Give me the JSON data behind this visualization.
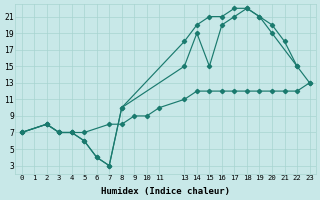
{
  "xlabel": "Humidex (Indice chaleur)",
  "bg_color": "#c8e8e8",
  "line_color": "#1a7a6e",
  "grid_color": "#a8d4d0",
  "xlim": [
    -0.5,
    23.5
  ],
  "ylim": [
    2,
    22.5
  ],
  "xtick_vals": [
    0,
    1,
    2,
    3,
    4,
    5,
    6,
    7,
    8,
    9,
    10,
    11,
    13,
    14,
    15,
    16,
    17,
    18,
    19,
    20,
    21,
    22,
    23
  ],
  "xtick_labels": [
    "0",
    "1",
    "2",
    "3",
    "4",
    "5",
    "6",
    "7",
    "8",
    "9",
    "10",
    "11",
    "13",
    "14",
    "15",
    "16",
    "17",
    "18",
    "19",
    "20",
    "21",
    "22",
    "23"
  ],
  "ytick_vals": [
    3,
    5,
    7,
    9,
    11,
    13,
    15,
    17,
    19,
    21
  ],
  "line_zigzag": {
    "x": [
      0,
      2,
      3,
      4,
      5,
      6,
      7,
      8,
      13,
      14,
      15,
      16,
      17,
      18,
      19,
      20,
      21,
      22
    ],
    "y": [
      7,
      8,
      7,
      7,
      6,
      4,
      3,
      10,
      18,
      20,
      21,
      21,
      22,
      22,
      21,
      20,
      18,
      15
    ]
  },
  "line_middle": {
    "x": [
      0,
      2,
      3,
      4,
      5,
      6,
      7,
      8,
      13,
      14,
      15,
      16,
      17,
      18,
      19,
      20,
      22,
      23
    ],
    "y": [
      7,
      8,
      7,
      7,
      6,
      4,
      3,
      10,
      15,
      19,
      15,
      20,
      21,
      22,
      21,
      19,
      15,
      13
    ]
  },
  "line_diagonal": {
    "x": [
      0,
      2,
      3,
      4,
      5,
      7,
      8,
      9,
      10,
      11,
      13,
      14,
      15,
      16,
      17,
      18,
      19,
      20,
      21,
      22,
      23
    ],
    "y": [
      7,
      8,
      7,
      7,
      7,
      8,
      8,
      9,
      9,
      10,
      11,
      12,
      12,
      12,
      12,
      12,
      12,
      12,
      12,
      12,
      13
    ]
  }
}
